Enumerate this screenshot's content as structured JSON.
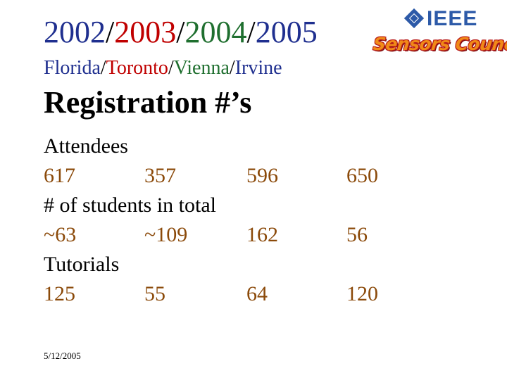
{
  "title": {
    "years": [
      {
        "text": "2002",
        "color": "#1f2f8f"
      },
      {
        "text": "/",
        "color": "#000000"
      },
      {
        "text": "2003",
        "color": "#c00000"
      },
      {
        "text": "/",
        "color": "#000000"
      },
      {
        "text": "2004",
        "color": "#1f6f2f"
      },
      {
        "text": "/",
        "color": "#000000"
      },
      {
        "text": "2005",
        "color": "#1f2f8f"
      }
    ],
    "cities": [
      {
        "text": "Florida",
        "color": "#1f2f8f"
      },
      {
        "text": "/",
        "color": "#000000"
      },
      {
        "text": "Toronto",
        "color": "#c00000"
      },
      {
        "text": "/",
        "color": "#000000"
      },
      {
        "text": "Vienna",
        "color": "#1f6f2f"
      },
      {
        "text": "/",
        "color": "#000000"
      },
      {
        "text": "Irvine",
        "color": "#1f2f8f"
      }
    ]
  },
  "logo": {
    "ieee": "IEEE",
    "council": "Sensors Council",
    "icon": "ieee-diamond-icon"
  },
  "heading": "Registration #’s",
  "sections": [
    {
      "label": "Attendees",
      "values": [
        "617",
        "357",
        "596",
        "650"
      ]
    },
    {
      "label": "# of students in total",
      "values": [
        "~63",
        "~109",
        "162",
        "56"
      ]
    },
    {
      "label": "Tutorials",
      "values": [
        "125",
        "55",
        "64",
        "120"
      ]
    }
  ],
  "footer": {
    "date": "5/12/2005"
  },
  "colors": {
    "value_text": "#8b4a0a",
    "label_text": "#000000"
  }
}
